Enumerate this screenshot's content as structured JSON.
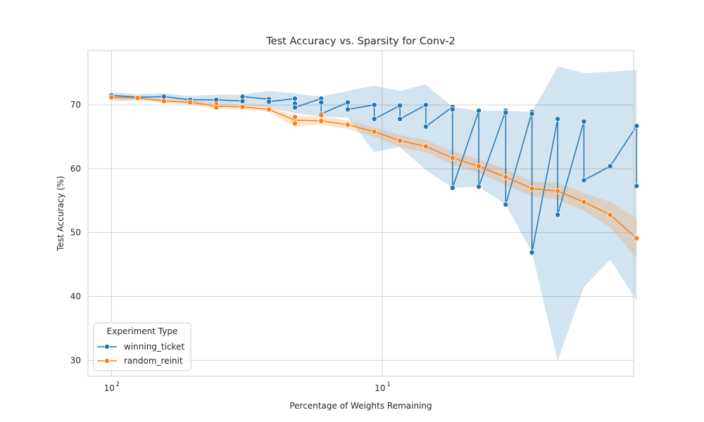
{
  "chart_data": {
    "type": "line",
    "title": "Test Accuracy vs. Sparsity for Conv-2",
    "xlabel": "Percentage of Weights Remaining",
    "ylabel": "Test Accuracy (%)",
    "x_scale": "log",
    "x_reversed": true,
    "xlim": [
      122,
      1.18
    ],
    "ylim": [
      27.5,
      78.5
    ],
    "xticks": [
      {
        "value": 100,
        "base": "10",
        "exp": "2"
      },
      {
        "value": 10,
        "base": "10",
        "exp": "1"
      }
    ],
    "yticks": [
      30,
      40,
      50,
      60,
      70
    ],
    "grid": true,
    "legend": {
      "title": "Experiment Type",
      "position": "lower-left"
    },
    "series": [
      {
        "name": "winning_ticket",
        "color": "#1f77b4",
        "points": [
          [
            100.0,
            71.5
          ],
          [
            80.0,
            71.2
          ],
          [
            64.0,
            71.3
          ],
          [
            51.2,
            70.8
          ],
          [
            41.0,
            70.8
          ],
          [
            32.8,
            70.6
          ],
          [
            32.8,
            71.3
          ],
          [
            26.2,
            70.9
          ],
          [
            26.2,
            70.5
          ],
          [
            21.0,
            71.0
          ],
          [
            21.0,
            70.2
          ],
          [
            21.0,
            69.6
          ],
          [
            16.8,
            71.0
          ],
          [
            16.8,
            70.4
          ],
          [
            16.8,
            68.6
          ],
          [
            13.4,
            70.4
          ],
          [
            13.4,
            69.3
          ],
          [
            10.7,
            70.0
          ],
          [
            10.7,
            67.8
          ],
          [
            8.6,
            69.9
          ],
          [
            8.6,
            67.8
          ],
          [
            6.9,
            70.0
          ],
          [
            6.9,
            66.6
          ],
          [
            5.5,
            69.7
          ],
          [
            5.5,
            69.3
          ],
          [
            5.5,
            57.0
          ],
          [
            4.4,
            69.1
          ],
          [
            4.4,
            57.2
          ],
          [
            3.5,
            69.1
          ],
          [
            3.5,
            68.8
          ],
          [
            3.5,
            54.4
          ],
          [
            2.8,
            68.9
          ],
          [
            2.8,
            68.6
          ],
          [
            2.8,
            46.9
          ],
          [
            2.25,
            67.8
          ],
          [
            2.25,
            52.8
          ],
          [
            1.8,
            67.4
          ],
          [
            1.8,
            58.2
          ],
          [
            1.44,
            60.4
          ],
          [
            1.15,
            66.7
          ],
          [
            1.15,
            57.3
          ]
        ],
        "band": [
          [
            100.0,
            70.6,
            72.0
          ],
          [
            80.0,
            70.7,
            71.7
          ],
          [
            64.0,
            70.8,
            71.8
          ],
          [
            51.2,
            70.3,
            71.4
          ],
          [
            41.0,
            70.0,
            71.6
          ],
          [
            32.8,
            70.0,
            71.6
          ],
          [
            26.2,
            69.6,
            72.2
          ],
          [
            21.0,
            68.7,
            71.8
          ],
          [
            16.8,
            68.2,
            71.3
          ],
          [
            13.4,
            68.0,
            72.2
          ],
          [
            10.7,
            62.6,
            73.0
          ],
          [
            8.6,
            63.4,
            72.2
          ],
          [
            6.9,
            59.8,
            73.2
          ],
          [
            5.5,
            57.0,
            69.7
          ],
          [
            4.4,
            57.2,
            69.1
          ],
          [
            3.5,
            54.4,
            69.1
          ],
          [
            2.8,
            46.9,
            68.9
          ],
          [
            2.25,
            29.9,
            76.0
          ],
          [
            1.8,
            41.5,
            75.0
          ],
          [
            1.44,
            45.8,
            75.2
          ],
          [
            1.15,
            39.3,
            75.5
          ]
        ]
      },
      {
        "name": "random_reinit",
        "color": "#ff7f0e",
        "points": [
          [
            100.0,
            71.2
          ],
          [
            80.0,
            71.1
          ],
          [
            64.0,
            70.6
          ],
          [
            51.2,
            70.4
          ],
          [
            41.0,
            70.1
          ],
          [
            41.0,
            69.6
          ],
          [
            32.8,
            69.7
          ],
          [
            26.2,
            69.3
          ],
          [
            21.0,
            68.1
          ],
          [
            21.0,
            67.1
          ],
          [
            16.8,
            68.4
          ],
          [
            16.8,
            67.5
          ],
          [
            13.4,
            66.9
          ],
          [
            10.7,
            65.8
          ],
          [
            8.6,
            64.4
          ],
          [
            6.9,
            63.5
          ],
          [
            5.5,
            61.7
          ],
          [
            4.4,
            60.4
          ],
          [
            3.5,
            58.7
          ],
          [
            2.8,
            56.9
          ],
          [
            2.25,
            56.5
          ],
          [
            1.8,
            54.8
          ],
          [
            1.44,
            52.8
          ],
          [
            1.15,
            49.1
          ]
        ],
        "line": [
          [
            100.0,
            71.2
          ],
          [
            80.0,
            71.1
          ],
          [
            64.0,
            70.6
          ],
          [
            51.2,
            70.4
          ],
          [
            41.0,
            69.8
          ],
          [
            32.8,
            69.7
          ],
          [
            26.2,
            69.3
          ],
          [
            21.0,
            67.6
          ],
          [
            16.8,
            67.5
          ],
          [
            13.4,
            66.9
          ],
          [
            10.7,
            65.8
          ],
          [
            8.6,
            64.4
          ],
          [
            6.9,
            63.5
          ],
          [
            5.5,
            61.7
          ],
          [
            4.4,
            60.4
          ],
          [
            3.5,
            58.7
          ],
          [
            2.8,
            56.9
          ],
          [
            2.25,
            56.5
          ],
          [
            1.8,
            54.8
          ],
          [
            1.44,
            52.8
          ],
          [
            1.15,
            49.1
          ]
        ],
        "band": [
          [
            100.0,
            70.9,
            71.6
          ],
          [
            80.0,
            70.8,
            71.4
          ],
          [
            64.0,
            70.3,
            70.9
          ],
          [
            51.2,
            70.0,
            70.7
          ],
          [
            41.0,
            69.4,
            70.2
          ],
          [
            32.8,
            69.3,
            70.1
          ],
          [
            26.2,
            68.9,
            69.8
          ],
          [
            21.0,
            66.6,
            68.3
          ],
          [
            16.8,
            66.9,
            68.2
          ],
          [
            13.4,
            66.2,
            67.6
          ],
          [
            10.7,
            65.0,
            66.5
          ],
          [
            8.6,
            63.4,
            65.3
          ],
          [
            6.9,
            62.6,
            64.5
          ],
          [
            5.5,
            60.6,
            62.8
          ],
          [
            4.4,
            59.3,
            61.5
          ],
          [
            3.5,
            57.4,
            59.9
          ],
          [
            2.8,
            55.7,
            58.0
          ],
          [
            2.25,
            55.2,
            57.8
          ],
          [
            1.8,
            53.4,
            56.2
          ],
          [
            1.44,
            50.8,
            54.8
          ],
          [
            1.15,
            46.0,
            52.3
          ]
        ]
      }
    ]
  }
}
